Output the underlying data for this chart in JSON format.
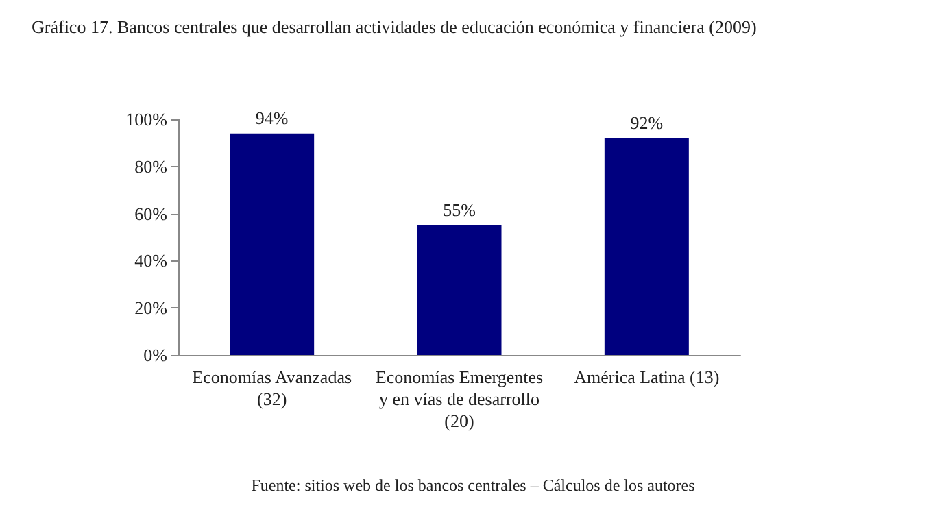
{
  "chart_data": {
    "type": "bar",
    "title": "Gráfico 17. Bancos centrales que desarrollan actividades de educación económica y financiera (2009)",
    "categories": [
      "Economías Avanzadas\n(32)",
      "Economías Emergentes\ny en vías de desarrollo\n(20)",
      "América Latina (13)"
    ],
    "values": [
      94,
      55,
      92
    ],
    "color": "#00007f",
    "value_labels": [
      "94%",
      "55%",
      "92%"
    ],
    "ylim": [
      0,
      100
    ],
    "yticks": [
      {
        "value": 0,
        "label": "0%"
      },
      {
        "value": 20,
        "label": "20%"
      },
      {
        "value": 40,
        "label": "40%"
      },
      {
        "value": 60,
        "label": "60%"
      },
      {
        "value": 80,
        "label": "80%"
      },
      {
        "value": 100,
        "label": "100%"
      }
    ],
    "grid": false,
    "annotations": [
      "Fuente: sitios web de los bancos centrales – Cálculos de los autores"
    ]
  }
}
